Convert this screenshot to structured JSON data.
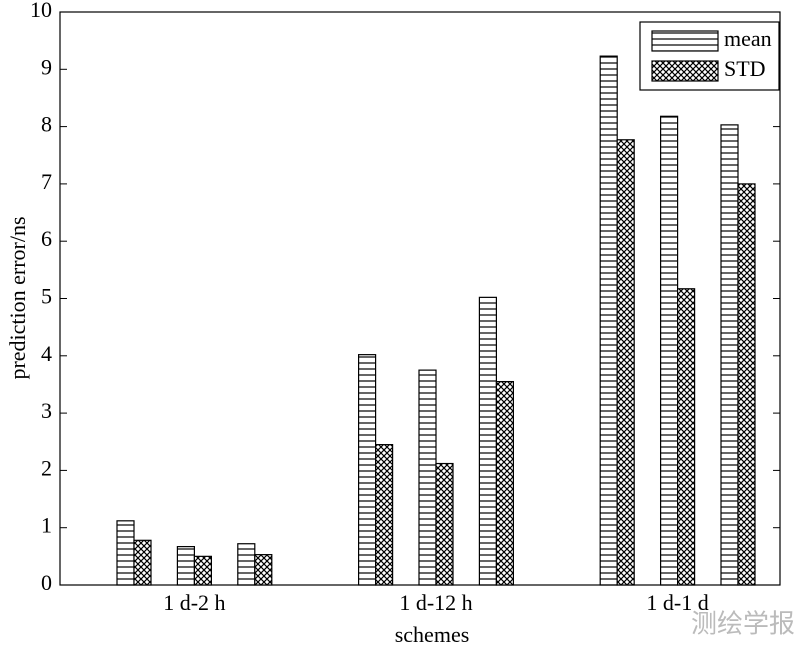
{
  "chart_data": {
    "type": "bar",
    "categories": [
      null,
      "1 d-2 h",
      null,
      null,
      "1 d-12 h",
      null,
      null,
      "1 d-1 d",
      null
    ],
    "series": [
      {
        "name": "mean",
        "color": "#000000",
        "pattern": "horizontal",
        "values": [
          1.12,
          0.67,
          0.72,
          4.02,
          3.75,
          5.02,
          9.23,
          8.18,
          8.03
        ]
      },
      {
        "name": "STD",
        "color": "#000000",
        "pattern": "crosshatch",
        "values": [
          0.78,
          0.5,
          0.53,
          2.45,
          2.12,
          3.55,
          7.77,
          5.17,
          7.0
        ]
      }
    ],
    "xlabel": "schemes",
    "ylabel": "prediction error/ns",
    "ylim": [
      0,
      10
    ],
    "yticks": [
      0,
      1,
      2,
      3,
      4,
      5,
      6,
      7,
      8,
      9,
      10
    ],
    "legend": "upper right",
    "grid": false
  },
  "watermark": "测绘学报"
}
